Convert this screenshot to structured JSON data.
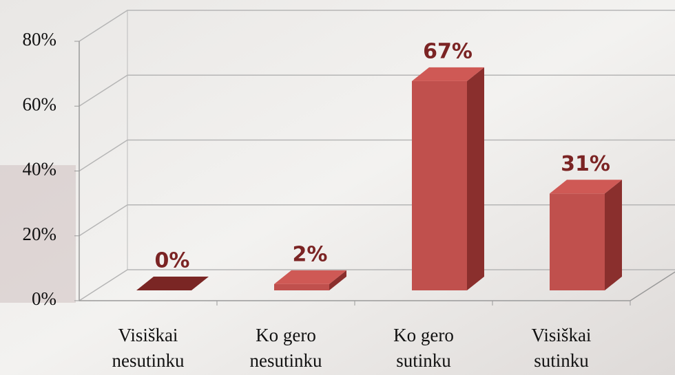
{
  "chart_data": {
    "type": "bar3d",
    "categories": [
      [
        "Visiškai",
        "nesutinku"
      ],
      [
        "Ko gero",
        "nesutinku"
      ],
      [
        "Ko gero",
        "sutinku"
      ],
      [
        "Visiškai",
        "sutinku"
      ]
    ],
    "values": [
      0,
      2,
      67,
      31
    ],
    "value_labels": [
      "0%",
      "2%",
      "67%",
      "31%"
    ],
    "color": "#c0504d",
    "ylim": [
      0,
      80
    ],
    "yticks": [
      {
        "value": 0,
        "label": "0%"
      },
      {
        "value": 20,
        "label": "20%"
      },
      {
        "value": 40,
        "label": "40%"
      },
      {
        "value": 60,
        "label": "60%"
      },
      {
        "value": 80,
        "label": "80%"
      }
    ],
    "grid": true
  }
}
